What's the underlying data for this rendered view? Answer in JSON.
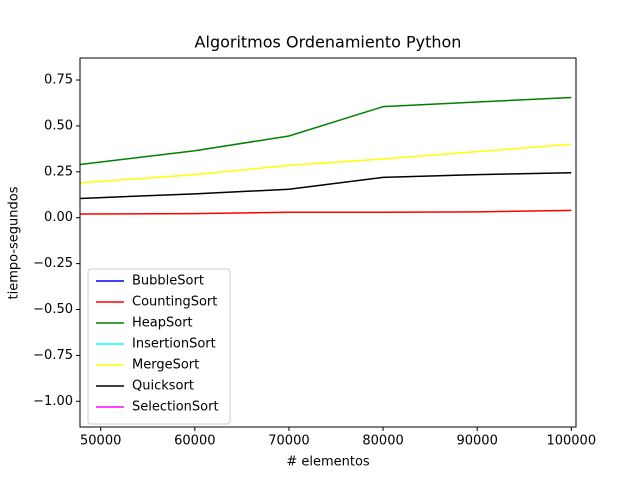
{
  "chart_data": {
    "type": "line",
    "title": "Algoritmos Ordenamiento Python",
    "xlabel": "# elementos",
    "ylabel": "tiempo-segundos",
    "x": [
      47800,
      60000,
      70000,
      80000,
      90000,
      100000
    ],
    "series": [
      {
        "name": "BubbleSort",
        "color": "#0000ff",
        "values": [
          null,
          null,
          null,
          null,
          null,
          null
        ]
      },
      {
        "name": "CountingSort",
        "color": "#ff0000",
        "values": [
          0.02,
          0.022,
          0.03,
          0.03,
          0.032,
          0.04
        ]
      },
      {
        "name": "HeapSort",
        "color": "#008000",
        "values": [
          0.29,
          0.365,
          0.445,
          0.605,
          0.63,
          0.655
        ]
      },
      {
        "name": "InsertionSort",
        "color": "#00ffff",
        "values": [
          null,
          null,
          null,
          null,
          null,
          null
        ]
      },
      {
        "name": "MergeSort",
        "color": "#ffff00",
        "values": [
          0.19,
          0.235,
          0.285,
          0.32,
          0.36,
          0.4
        ]
      },
      {
        "name": "Quicksort",
        "color": "#000000",
        "values": [
          0.105,
          0.13,
          0.155,
          0.22,
          0.235,
          0.245
        ]
      },
      {
        "name": "SelectionSort",
        "color": "#ff00ff",
        "values": [
          null,
          null,
          null,
          null,
          null,
          null
        ]
      }
    ],
    "xlim": [
      47800,
      100500
    ],
    "xticks": [
      50000,
      60000,
      70000,
      80000,
      90000,
      100000
    ],
    "ylim": [
      -1.14,
      0.87
    ],
    "yticks": [
      {
        "value": -1.0,
        "label": "−1.00"
      },
      {
        "value": -0.75,
        "label": "−0.75"
      },
      {
        "value": -0.5,
        "label": "−0.50"
      },
      {
        "value": -0.25,
        "label": "−0.25"
      },
      {
        "value": 0,
        "label": "0.00"
      },
      {
        "value": 0.25,
        "label": "0.25"
      },
      {
        "value": 0.5,
        "label": "0.50"
      },
      {
        "value": 0.75,
        "label": "0.75"
      }
    ],
    "legend": "lower left",
    "grid": false
  }
}
